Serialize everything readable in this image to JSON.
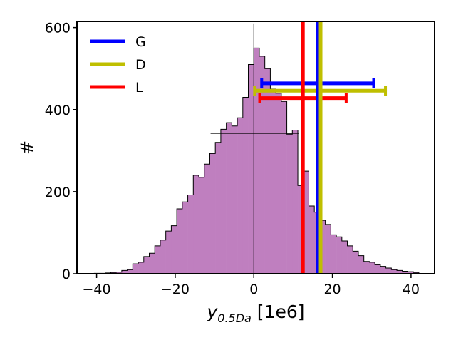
{
  "chart_data": {
    "type": "histogram",
    "xlabel_main": "y",
    "xlabel_sub": "0.5Da",
    "xlabel_unit": " [1e6]",
    "ylabel": "#",
    "xlim": [
      -45,
      46
    ],
    "ylim": [
      0,
      615
    ],
    "xticks": [
      -40,
      -20,
      0,
      20,
      40
    ],
    "yticks": [
      0,
      200,
      400,
      600
    ],
    "hist_color": "#bf7fbf",
    "bin_width": 1.4,
    "bin_edges": [
      -40.6,
      -39.2,
      -37.8,
      -36.4,
      -35.0,
      -33.6,
      -32.2,
      -30.8,
      -29.4,
      -28.0,
      -26.6,
      -25.2,
      -23.8,
      -22.4,
      -21.0,
      -19.6,
      -18.2,
      -16.8,
      -15.4,
      -14.0,
      -12.6,
      -11.2,
      -9.8,
      -8.4,
      -7.0,
      -5.6,
      -4.2,
      -2.8,
      -1.4,
      0.0,
      1.4,
      2.8,
      4.2,
      5.6,
      7.0,
      8.4,
      9.8,
      11.2,
      12.6,
      14.0,
      15.4,
      16.8,
      18.2,
      19.6,
      21.0,
      22.4,
      23.8,
      25.2,
      26.6,
      28.0,
      29.4,
      30.8,
      32.2,
      33.6,
      35.0,
      36.4,
      37.8,
      39.2,
      40.6,
      42.0
    ],
    "counts": [
      1,
      1,
      2,
      3,
      4,
      8,
      10,
      24,
      28,
      42,
      50,
      68,
      82,
      104,
      117,
      158,
      175,
      192,
      240,
      235,
      267,
      293,
      320,
      352,
      368,
      360,
      380,
      430,
      510,
      550,
      530,
      500,
      450,
      440,
      420,
      340,
      350,
      215,
      250,
      165,
      150,
      130,
      120,
      95,
      90,
      80,
      68,
      55,
      44,
      30,
      28,
      22,
      18,
      14,
      10,
      8,
      6,
      5,
      3,
      2
    ],
    "mean_line": {
      "x": 0,
      "y_top": 610
    },
    "width_segment": {
      "x0": -11,
      "x1": 11.5,
      "y": 342
    },
    "series": [
      {
        "name": "G",
        "color": "#0000ff",
        "x": 16.2,
        "err_lo": 2.0,
        "err_hi": 30.5,
        "err_y": 464
      },
      {
        "name": "D",
        "color": "#bfbf00",
        "x": 17.0,
        "err_lo": 0.2,
        "err_hi": 33.5,
        "err_y": 446
      },
      {
        "name": "L",
        "color": "#ff0000",
        "x": 12.5,
        "err_lo": 1.5,
        "err_hi": 23.5,
        "err_y": 428
      }
    ],
    "legend_position": "upper-left"
  }
}
